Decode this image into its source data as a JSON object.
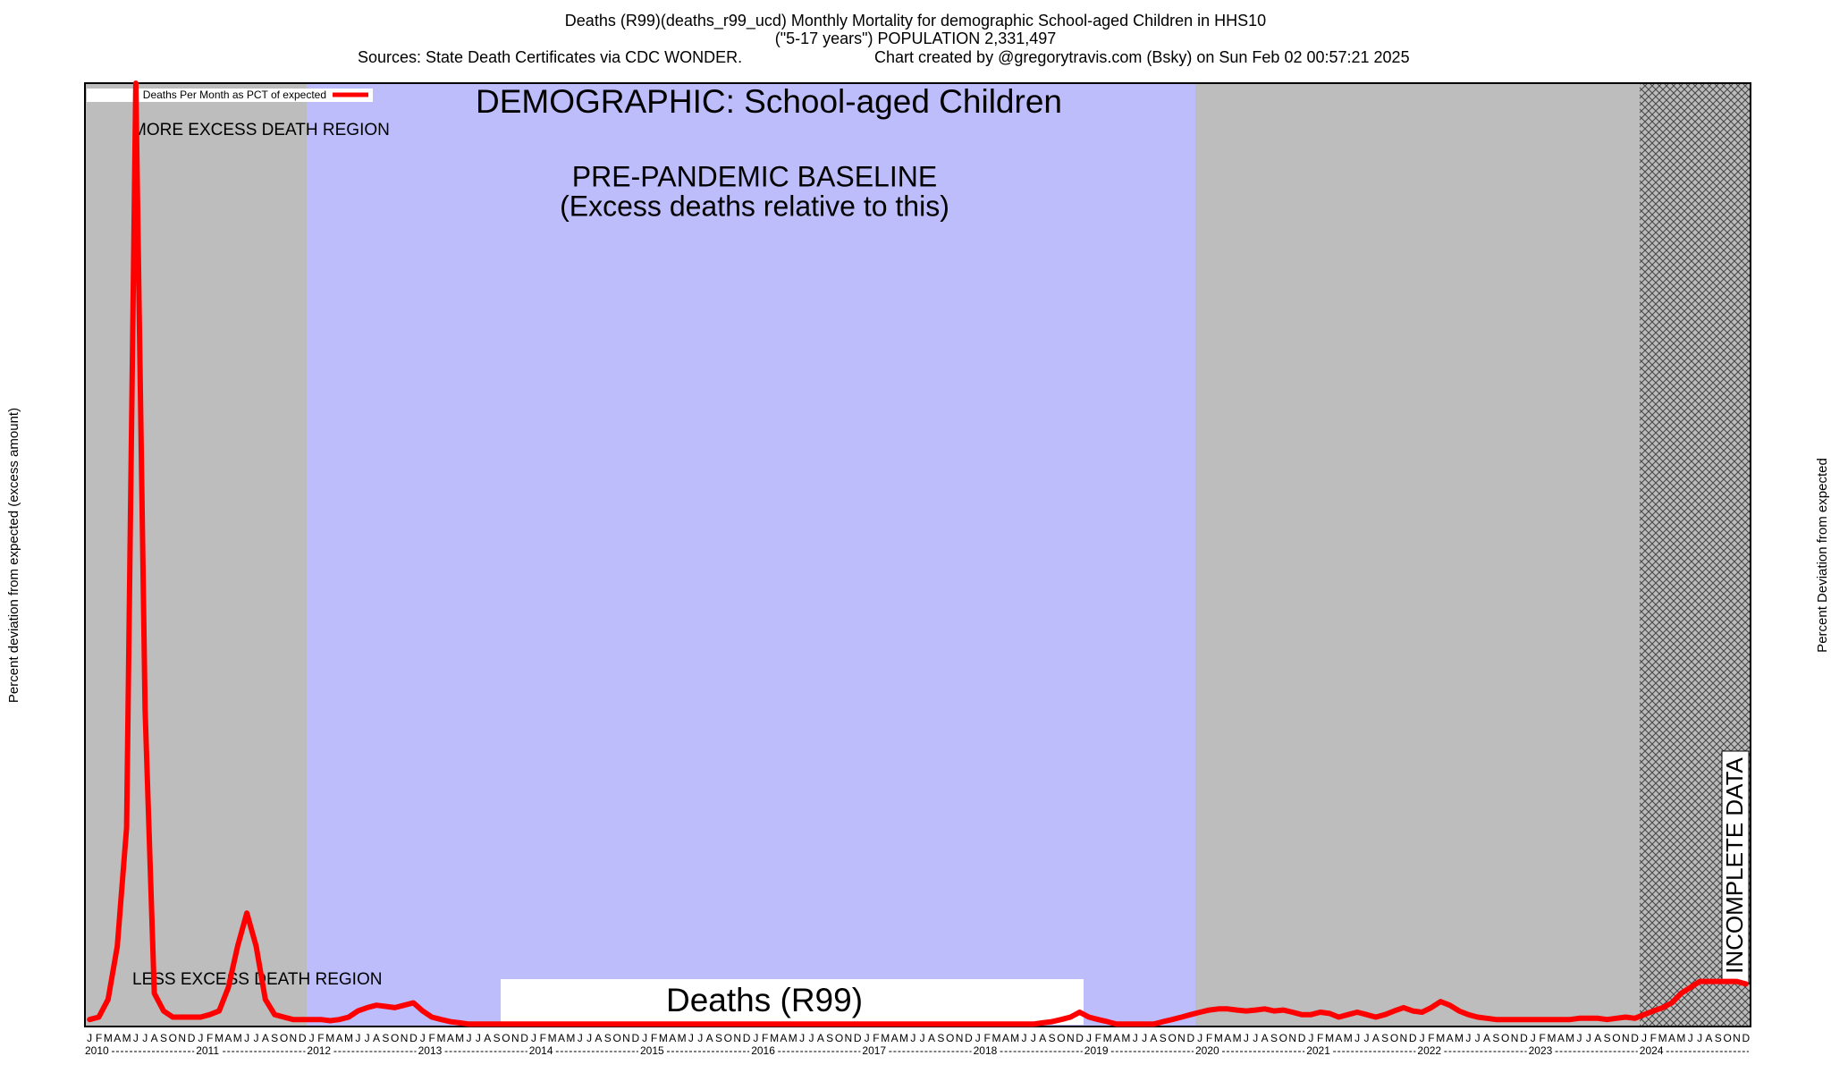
{
  "chart_data": {
    "type": "line",
    "title": "Deaths (R99)(deaths_r99_ucd) Monthly Mortality for demographic School-aged Children in HHS10",
    "subtitle": "(\"5-17 years\") POPULATION 2,331,497",
    "source": "Sources: State Death Certificates via CDC WONDER.",
    "credit": "Chart created by @gregorytravis.com (Bsky) on Sun Feb 02 00:57:21 2025",
    "annotations": {
      "demographic": "DEMOGRAPHIC: School-aged Children",
      "baseline": "PRE-PANDEMIC BASELINE",
      "baseline_note": "(Excess deaths relative to this)",
      "more": "MORE EXCESS DEATH REGION",
      "less": "LESS EXCESS DEATH REGION",
      "cause": "Deaths (R99)",
      "incomplete": "INCOMPLETE DATA"
    },
    "ylabel": "Percent deviation from expected (excess amount)",
    "y2label": "Percent Deviation from expected",
    "years": [
      "2010",
      "2011",
      "2012",
      "2013",
      "2014",
      "2015",
      "2016",
      "2017",
      "2018",
      "2019",
      "2020",
      "2021",
      "2022",
      "2023",
      "2024"
    ],
    "categories": [
      "J",
      "F",
      "M",
      "A",
      "M",
      "J",
      "J",
      "A",
      "S",
      "O",
      "N",
      "D",
      "J",
      "F",
      "M",
      "A",
      "M",
      "J",
      "J",
      "A",
      "S",
      "O",
      "N",
      "D",
      "J",
      "F",
      "M",
      "A",
      "M",
      "J",
      "J",
      "A",
      "S",
      "O",
      "N",
      "D",
      "J",
      "F",
      "M",
      "A",
      "M",
      "J",
      "J",
      "A",
      "S",
      "O",
      "N",
      "D",
      "J",
      "F",
      "M",
      "A",
      "M",
      "J",
      "J",
      "A",
      "S",
      "O",
      "N",
      "D",
      "J",
      "F",
      "M",
      "A",
      "M",
      "J",
      "J",
      "A",
      "S",
      "O",
      "N",
      "D",
      "J",
      "F",
      "M",
      "A",
      "M",
      "J",
      "J",
      "A",
      "S",
      "O",
      "N",
      "D",
      "J",
      "F",
      "M",
      "A",
      "M",
      "J",
      "J",
      "A",
      "S",
      "O",
      "N",
      "D",
      "J",
      "F",
      "M",
      "A",
      "M",
      "J",
      "J",
      "A",
      "S",
      "O",
      "N",
      "D",
      "J",
      "F",
      "M",
      "A",
      "M",
      "J",
      "J",
      "A",
      "S",
      "O",
      "N",
      "D",
      "J",
      "F",
      "M",
      "A",
      "M",
      "J",
      "J",
      "A",
      "S",
      "O",
      "N",
      "D",
      "J",
      "F",
      "M",
      "A",
      "M",
      "J",
      "J",
      "A",
      "S",
      "O",
      "N",
      "D",
      "J",
      "F",
      "M",
      "A",
      "M",
      "J",
      "J",
      "A",
      "S",
      "O",
      "N",
      "D",
      "J",
      "F",
      "M",
      "A",
      "M",
      "J",
      "J",
      "A",
      "S",
      "O",
      "N",
      "D",
      "J",
      "F",
      "M",
      "A",
      "M",
      "J",
      "J",
      "A",
      "S",
      "O",
      "N",
      "D"
    ],
    "series": [
      {
        "name": "Deaths Per Month as PCT of expected",
        "color": "#ff0000",
        "values": [
          -77,
          -69,
          -11,
          164,
          553,
          3000,
          941,
          9,
          -49,
          -69,
          -69,
          -69,
          -69,
          -61,
          -49,
          28,
          164,
          273,
          164,
          -11,
          -61,
          -69,
          -77,
          -77,
          -77,
          -77,
          -81,
          -77,
          -69,
          -49,
          -38,
          -30,
          -34,
          -38,
          -30,
          -22,
          -49,
          -69,
          -77,
          -84,
          -88,
          -92,
          -92,
          -92,
          -92,
          -92,
          -92,
          -92,
          -92,
          -92,
          -92,
          -92,
          -92,
          -92,
          -92,
          -92,
          -92,
          -92,
          -92,
          -92,
          -92,
          -92,
          -92,
          -92,
          -92,
          -92,
          -92,
          -92,
          -92,
          -92,
          -92,
          -92,
          -92,
          -92,
          -92,
          -92,
          -92,
          -92,
          -92,
          -92,
          -92,
          -92,
          -92,
          -92,
          -92,
          -92,
          -92,
          -92,
          -92,
          -92,
          -92,
          -92,
          -92,
          -92,
          -92,
          -92,
          -92,
          -92,
          -92,
          -92,
          -92,
          -92,
          -92,
          -88,
          -84,
          -77,
          -69,
          -53,
          -69,
          -77,
          -84,
          -92,
          -92,
          -92,
          -92,
          -92,
          -84,
          -77,
          -69,
          -61,
          -53,
          -46,
          -42,
          -42,
          -46,
          -49,
          -46,
          -42,
          -49,
          -46,
          -53,
          -61,
          -61,
          -53,
          -57,
          -69,
          -61,
          -53,
          -61,
          -69,
          -61,
          -49,
          -38,
          -49,
          -53,
          -38,
          -18,
          -30,
          -49,
          -61,
          -69,
          -73,
          -77,
          -77,
          -77,
          -77,
          -77,
          -77,
          -77,
          -77,
          -77,
          -73,
          -73,
          -73,
          -77,
          -73,
          -69,
          -73,
          -61,
          -49,
          -38,
          -22,
          9,
          28,
          48,
          48,
          48,
          48,
          48,
          40
        ]
      }
    ],
    "ylim": [
      -100,
      3000
    ]
  }
}
